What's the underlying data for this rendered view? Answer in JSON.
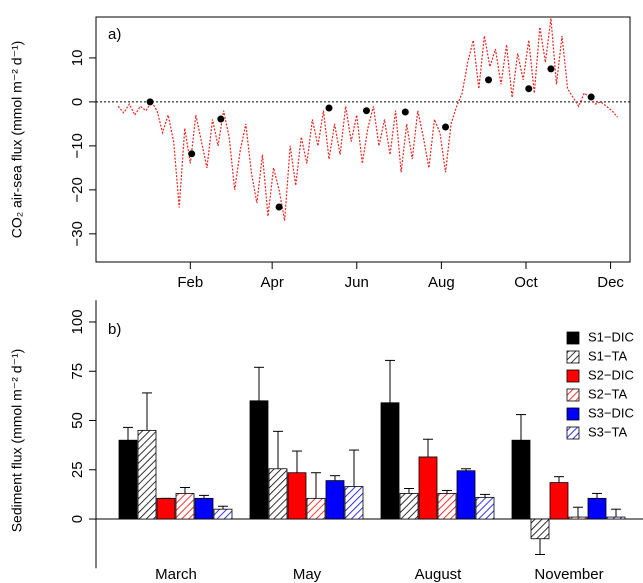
{
  "chart_data": [
    {
      "type": "line",
      "panel_label": "a)",
      "y_label": "CO₂ air-sea flux (mmol m⁻² d⁻¹)",
      "xlim": [
        -36,
        349
      ],
      "ylim": [
        -36.4,
        19.3
      ],
      "xticks": [
        {
          "value": 32,
          "label": "Feb"
        },
        {
          "value": 91,
          "label": "Apr"
        },
        {
          "value": 152,
          "label": "Jun"
        },
        {
          "value": 213,
          "label": "Aug"
        },
        {
          "value": 274,
          "label": "Oct"
        },
        {
          "value": 335,
          "label": "Dec"
        }
      ],
      "yticks": [
        {
          "value": -30,
          "label": "−30"
        },
        {
          "value": -20,
          "label": "−20"
        },
        {
          "value": -10,
          "label": "−10"
        },
        0,
        10,
        20
      ],
      "zero_line": true,
      "x": [
        -20,
        -16,
        -12,
        -8,
        -4,
        0,
        4,
        8,
        12,
        16,
        20,
        24,
        28,
        32,
        36,
        40,
        44,
        48,
        52,
        56,
        60,
        64,
        68,
        72,
        76,
        80,
        84,
        88,
        92,
        96,
        100,
        104,
        108,
        112,
        116,
        120,
        124,
        128,
        132,
        136,
        140,
        144,
        148,
        152,
        156,
        160,
        164,
        168,
        172,
        176,
        180,
        184,
        188,
        192,
        196,
        200,
        204,
        208,
        212,
        216,
        220,
        224,
        228,
        232,
        236,
        240,
        244,
        248,
        252,
        256,
        260,
        264,
        268,
        272,
        276,
        280,
        284,
        288,
        292,
        296,
        300,
        304,
        308,
        312,
        316,
        320,
        324,
        328,
        332,
        336,
        340
      ],
      "series": [
        {
          "color": "#e8261f",
          "values": [
            -1,
            -2.5,
            -0.5,
            -3,
            -1,
            -2,
            0,
            -2,
            -7,
            -3,
            -9,
            -24,
            -6,
            -14,
            -3,
            -9,
            -15,
            -4,
            -10,
            -2,
            -8,
            -20,
            -11,
            -5,
            -16,
            -23,
            -12,
            -26,
            -15,
            -20,
            -27,
            -10,
            -19,
            -8,
            -14,
            -4,
            -10,
            -2,
            -13,
            -5,
            -12,
            -1,
            -9,
            -3,
            -14,
            -6,
            -1,
            -10,
            -4,
            -12,
            -2,
            -16,
            -5,
            -13,
            -2,
            -8,
            -15,
            -4,
            -7,
            -16,
            -5,
            -1,
            2,
            9,
            14,
            3,
            15,
            8,
            12,
            4,
            13,
            1,
            11,
            5,
            14,
            2,
            17,
            9,
            19,
            4,
            15,
            3,
            1,
            -1,
            2,
            1,
            -0.5,
            0,
            -1,
            -2,
            -3.5
          ]
        }
      ],
      "points": {
        "color": "#000000",
        "x": [
          3,
          33,
          54,
          96,
          132,
          159,
          187,
          216,
          247,
          276,
          292,
          321
        ],
        "values": [
          0,
          -11.8,
          -3.9,
          -23.9,
          -1.4,
          -2,
          -2.3,
          -5.7,
          5,
          3,
          7.5,
          1.1
        ]
      }
    },
    {
      "type": "bar",
      "panel_label": "b)",
      "y_label": "Sediment flux (mmol m⁻² d⁻¹)",
      "ylim": [
        -25,
        111
      ],
      "yticks": [
        0,
        25,
        50,
        75,
        100
      ],
      "categories": [
        "March",
        "May",
        "August",
        "November"
      ],
      "series": [
        {
          "name": "S1−DIC",
          "color": "#000000",
          "hatch": false,
          "values": [
            40,
            60,
            59,
            40
          ],
          "errors": [
            6.5,
            17,
            21.5,
            13
          ]
        },
        {
          "name": "S1−TA",
          "color": "#000000",
          "hatch": true,
          "values": [
            45,
            25.5,
            13,
            -10
          ],
          "errors": [
            19,
            19,
            2.5,
            8
          ]
        },
        {
          "name": "S2−DIC",
          "color": "#ff0000",
          "hatch": false,
          "values": [
            10.5,
            23.5,
            31.5,
            18.5
          ],
          "errors": [
            0,
            11,
            9,
            3
          ]
        },
        {
          "name": "S2−TA",
          "color": "#ff0000",
          "hatch": true,
          "values": [
            13,
            10.5,
            13,
            1
          ],
          "errors": [
            3,
            13,
            1.5,
            5
          ]
        },
        {
          "name": "S3−DIC",
          "color": "#0000ff",
          "hatch": false,
          "values": [
            10.5,
            19.5,
            24.5,
            10.5
          ],
          "errors": [
            1.5,
            2.5,
            1,
            2.5
          ]
        },
        {
          "name": "S3−TA",
          "color": "#0000ff",
          "hatch": true,
          "values": [
            5,
            16.5,
            11,
            1
          ],
          "errors": [
            1.5,
            18.5,
            1.5,
            4
          ]
        }
      ]
    }
  ]
}
